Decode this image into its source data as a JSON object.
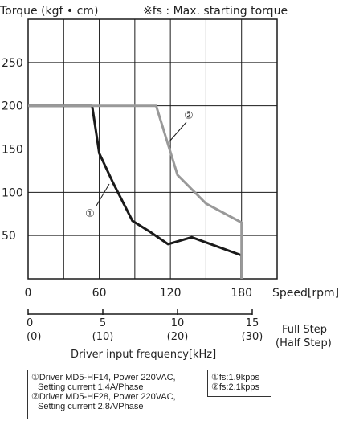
{
  "chart_data": {
    "type": "line",
    "ylabel": "Torque (kgf • cm)",
    "note": "※fs : Max. starting torque",
    "xlabel": "Speed[rpm]",
    "xlim": [
      0,
      210
    ],
    "ylim": [
      0,
      300
    ],
    "x_ticks": [
      "0",
      "60",
      "120",
      "180"
    ],
    "y_ticks": [
      "50",
      "100",
      "150",
      "200",
      "250"
    ],
    "series": [
      {
        "marker": "①",
        "color": "#1a1a1a",
        "x": [
          0,
          54,
          60,
          72,
          88,
          102,
          118,
          138,
          180,
          180
        ],
        "y": [
          200,
          200,
          145,
          110,
          67,
          55,
          40,
          48,
          27,
          0
        ]
      },
      {
        "marker": "②",
        "color": "#999999",
        "x": [
          0,
          108,
          126,
          150,
          180,
          180
        ],
        "y": [
          200,
          200,
          120,
          87,
          65,
          0
        ]
      }
    ],
    "frequency_axis": {
      "ticks_full": [
        "0",
        "5",
        "10",
        "15"
      ],
      "ticks_half": [
        "(0)",
        "(10)",
        "(20)",
        "(30)"
      ],
      "label_full": "Full Step",
      "label_half": "(Half Step)",
      "title": "Driver input frequency[kHz]"
    }
  },
  "legend": {
    "line1": "①Driver MD5-HF14, Power 220VAC,",
    "line2": "Setting current 1.4A/Phase",
    "line3": "②Driver MD5-HF28, Power 220VAC,",
    "line4": "Setting current 2.8A/Phase"
  },
  "fs_legend": {
    "line1": "①fs:1.9kpps",
    "line2": "②fs:2.1kpps"
  }
}
